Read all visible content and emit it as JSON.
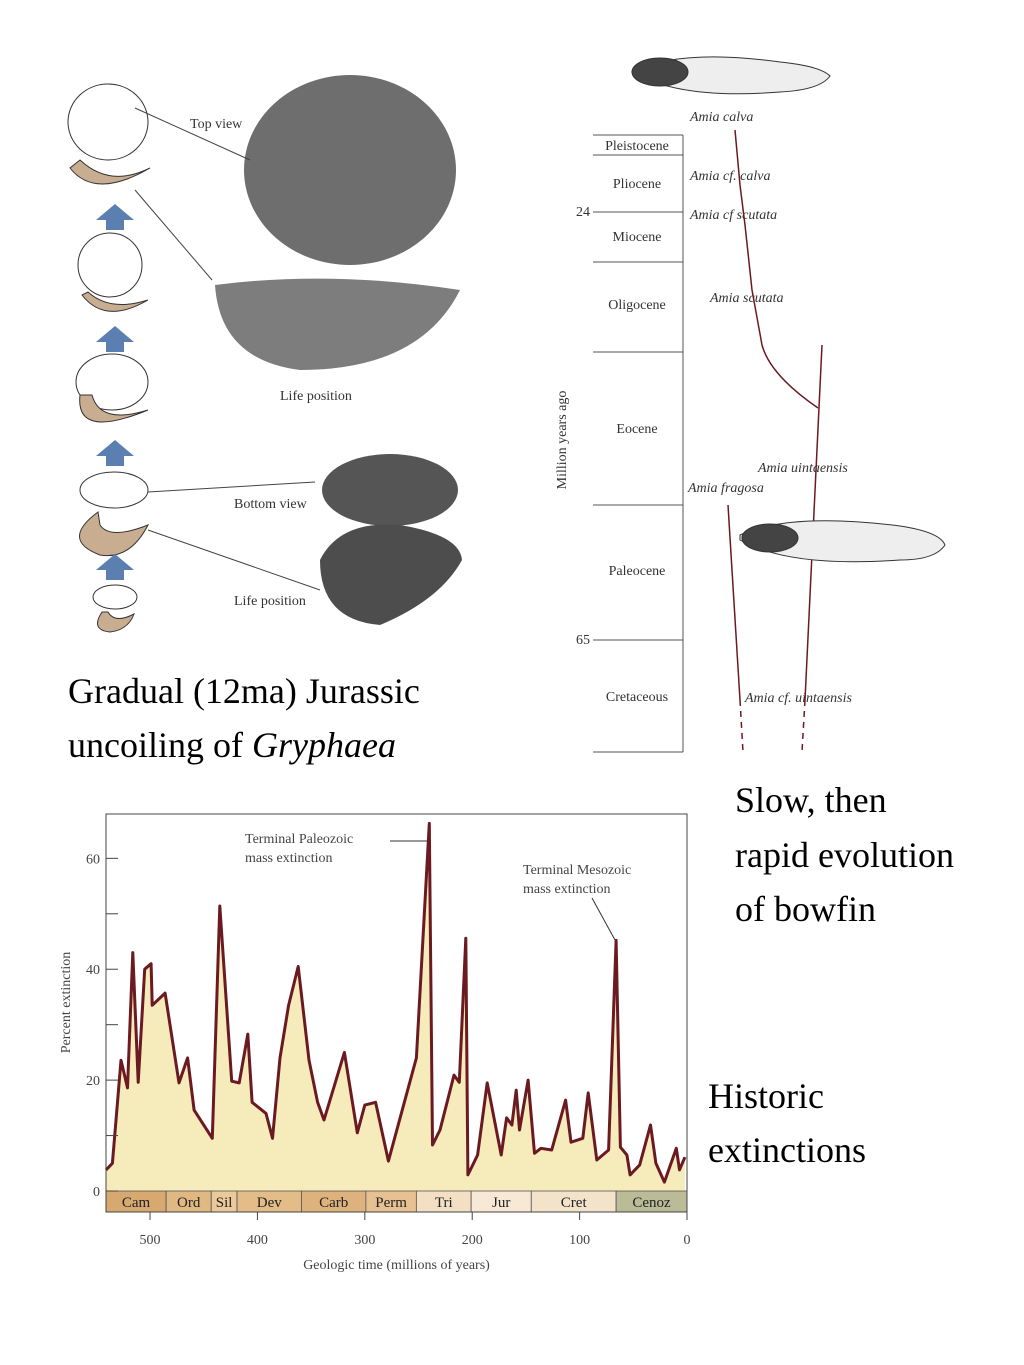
{
  "gryphaea": {
    "labels": [
      "Top view",
      "Life position",
      "Bottom view",
      "Life position"
    ],
    "caption": {
      "line1": "Gradual (12ma) Jurassic",
      "line2": "uncoiling of",
      "italic": "Gryphaea"
    }
  },
  "bowfin": {
    "axis_label": "Million years ago",
    "epochs": [
      "Pleistocene",
      "Pliocene",
      "Miocene",
      "Oligocene",
      "Eocene",
      "Paleocene",
      "Cretaceous"
    ],
    "ticks": [
      24,
      65
    ],
    "species": [
      "Amia calva",
      "Amia cf. calva",
      "Amia cf scutata",
      "Amia scutata",
      "Amia uintaensis",
      "Amia fragosa",
      "Amia cf. uintaensis"
    ],
    "caption": [
      "Slow, then",
      "rapid evolution",
      "of bowfin"
    ]
  },
  "caption": [
    "Historic",
    "extinctions"
  ],
  "chart_data": {
    "type": "line",
    "xlabel": "Geologic time (millions of years)",
    "ylabel": "Percent extinction",
    "x": [
      541,
      535,
      527,
      521,
      516,
      511,
      505,
      499,
      498,
      486,
      473,
      465,
      459,
      442,
      435,
      424,
      417,
      409,
      405,
      392,
      386,
      379,
      371,
      362,
      352,
      344,
      338,
      319,
      307,
      300,
      290,
      278,
      252,
      240,
      237,
      230,
      217,
      212,
      206,
      204,
      195,
      186,
      173,
      168,
      163,
      159,
      156,
      148,
      142,
      136,
      126,
      113,
      108,
      97,
      92,
      84,
      73,
      66,
      62,
      56,
      53,
      44,
      34,
      29,
      21,
      10,
      7,
      2
    ],
    "values": [
      3.8,
      5,
      23.6,
      18.6,
      43,
      19.6,
      40,
      41,
      33.5,
      35.7,
      19.5,
      24,
      14.6,
      9.5,
      51.4,
      19.8,
      19.5,
      28.3,
      16,
      14,
      9.5,
      24,
      33.5,
      40.5,
      23.6,
      16,
      12.8,
      25,
      10.5,
      15.5,
      16,
      5.4,
      24,
      66.3,
      8.3,
      11,
      20.9,
      19.6,
      45.6,
      2.9,
      6.5,
      19.5,
      6.5,
      13.2,
      11.9,
      18.2,
      11,
      20,
      6.8,
      7.7,
      7.4,
      16.4,
      8.8,
      9.5,
      17.7,
      5.6,
      7.4,
      45.2,
      7.9,
      6.5,
      2.9,
      4.7,
      11.9,
      5,
      1.6,
      7.7,
      3.8,
      6.1
    ],
    "color": "#6b1a22",
    "fill": "#f6ebbb",
    "xlim": [
      541,
      0
    ],
    "xticks": [
      500,
      400,
      300,
      200,
      100,
      0
    ],
    "ylim": [
      0,
      68
    ],
    "yticks": [
      0,
      20,
      40,
      60
    ],
    "yminor_ticks": [
      10,
      30,
      50
    ],
    "periods": [
      {
        "name": "Cam",
        "start": 541,
        "end": 485,
        "color": "#d7a870"
      },
      {
        "name": "Ord",
        "start": 485,
        "end": 443,
        "color": "#e0b882"
      },
      {
        "name": "Sil",
        "start": 443,
        "end": 419,
        "color": "#ecc99b"
      },
      {
        "name": "Dev",
        "start": 419,
        "end": 359,
        "color": "#e3bc88"
      },
      {
        "name": "Carb",
        "start": 359,
        "end": 299,
        "color": "#ddb27c"
      },
      {
        "name": "Perm",
        "start": 299,
        "end": 252,
        "color": "#e8c193"
      },
      {
        "name": "Tri",
        "start": 252,
        "end": 201,
        "color": "#f3dfc4"
      },
      {
        "name": "Jur",
        "start": 201,
        "end": 145,
        "color": "#f7e9d5"
      },
      {
        "name": "Cret",
        "start": 145,
        "end": 66,
        "color": "#f4e3cb"
      },
      {
        "name": "Cenoz",
        "start": 66,
        "end": 0,
        "color": "#b9bc96"
      }
    ],
    "annotations": [
      [
        "Terminal Paleozoic",
        "mass extinction"
      ],
      [
        "Terminal Mesozoic",
        "mass extinction"
      ]
    ]
  }
}
